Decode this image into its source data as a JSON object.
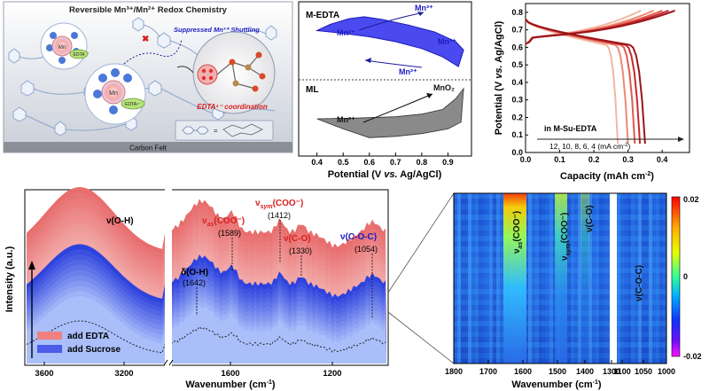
{
  "schematic": {
    "title": "Reversible Mn³⁺/Mn²⁺ Redox Chemistry",
    "suppressed_label": "Suppressed Mn³⁺ Shuttling",
    "coordination_label": "EDTA⁴⁻ coordination",
    "substrate_label": "Carbon Felt",
    "ion_label": "Mn",
    "ion_label_big": "Mn",
    "ligand_label": "EDTA",
    "ligand_label_big": "EDTA⁴⁻"
  },
  "chart_data": [
    {
      "id": "cv",
      "type": "line",
      "title": "",
      "xlabel_parts": [
        "Potential (V ",
        "vs.",
        " Ag/AgCl)"
      ],
      "xticks": [
        "0.4",
        "0.5",
        "0.6",
        "0.7",
        "0.8",
        "0.9"
      ],
      "xlim": [
        0.33,
        0.99
      ],
      "panels": [
        {
          "label": "M-EDTA",
          "annotations": [
            "Mn²⁺",
            "Mn³⁺",
            "Mn³⁺",
            "Mn²⁺"
          ],
          "color": "#3b3bf0",
          "curve": [
            [
              0.4,
              0.34
            ],
            [
              0.5,
              0.38
            ],
            [
              0.6,
              0.43
            ],
            [
              0.7,
              0.5
            ],
            [
              0.8,
              0.6
            ],
            [
              0.88,
              0.72
            ],
            [
              0.94,
              0.86
            ],
            [
              0.96,
              0.62
            ],
            [
              0.93,
              0.5
            ],
            [
              0.85,
              0.36
            ],
            [
              0.75,
              0.26
            ],
            [
              0.65,
              0.18
            ],
            [
              0.58,
              0.14
            ],
            [
              0.52,
              0.17
            ],
            [
              0.45,
              0.25
            ],
            [
              0.4,
              0.34
            ]
          ]
        },
        {
          "label": "ML",
          "annotations": [
            "Mn²⁺",
            "MnO₂"
          ],
          "color": "#808080",
          "curve": [
            [
              0.4,
              0.5
            ],
            [
              0.55,
              0.49
            ],
            [
              0.7,
              0.47
            ],
            [
              0.8,
              0.43
            ],
            [
              0.88,
              0.36
            ],
            [
              0.93,
              0.2
            ],
            [
              0.96,
              0.05
            ],
            [
              0.95,
              0.55
            ],
            [
              0.9,
              0.65
            ],
            [
              0.8,
              0.72
            ],
            [
              0.7,
              0.76
            ],
            [
              0.6,
              0.78
            ],
            [
              0.5,
              0.65
            ],
            [
              0.4,
              0.5
            ]
          ]
        }
      ]
    },
    {
      "id": "gcd",
      "type": "line",
      "title": "",
      "xlabel_parts": [
        "Capacity (mAh cm",
        "-2",
        ")"
      ],
      "ylabel_parts": [
        "Potential (V ",
        "vs.",
        " Ag/AgCl)"
      ],
      "xlim": [
        0.0,
        0.48
      ],
      "ylim": [
        0.0,
        0.85
      ],
      "xticks": [
        "0.0",
        "0.1",
        "0.2",
        "0.3",
        "0.4"
      ],
      "yticks": [
        "0.0",
        "0.1",
        "0.2",
        "0.3",
        "0.4",
        "0.5",
        "0.6",
        "0.7",
        "0.8"
      ],
      "legend_title": "in M-Su-EDTA",
      "legend_text_parts": [
        "12, 10, 8, 6, 4 (mA cm",
        "-2",
        ")"
      ],
      "series": [
        {
          "name": "12 mA cm-2",
          "color": "#f2b8a2",
          "capacity": 0.27
        },
        {
          "name": "10 mA cm-2",
          "color": "#ec8a74",
          "capacity": 0.3
        },
        {
          "name": "8 mA cm-2",
          "color": "#e05a4e",
          "capacity": 0.32
        },
        {
          "name": "6 mA cm-2",
          "color": "#c8272f",
          "capacity": 0.335
        },
        {
          "name": "4 mA cm-2",
          "color": "#9a1519",
          "capacity": 0.35
        }
      ]
    },
    {
      "id": "ftir",
      "type": "line",
      "xlabel_parts": [
        "Wavenumber (cm",
        "-1",
        ")"
      ],
      "ylabel": "Intensity (a.u.)",
      "xticks": [
        "3600",
        "3200",
        "1600",
        "1200"
      ],
      "legend": [
        "add EDTA",
        "add Sucrose"
      ],
      "legend_colors": [
        "#f08080",
        "#3d4ee6"
      ],
      "peaks": [
        {
          "label": "ν(O-H)",
          "position": ""
        },
        {
          "label_main": "ν",
          "label_sub": "as",
          "label_tail": "(COO⁻)",
          "position": "(1589)",
          "color": "#d62020"
        },
        {
          "label": "δ(O-H)",
          "position": "(1642)",
          "color": "#000000"
        },
        {
          "label_main": "ν",
          "label_sub": "sym",
          "label_tail": "(COO⁻)",
          "position": "(1412)",
          "color": "#d62020"
        },
        {
          "label": "ν(C-O)",
          "position": "(1330)",
          "color": "#d62020"
        },
        {
          "label": "ν(C-O-C)",
          "position": "(1054)",
          "color": "#1c1cc0"
        }
      ]
    },
    {
      "id": "heatmap",
      "type": "heatmap",
      "xlabel_parts": [
        "Wavenumber (cm",
        "-1",
        ")"
      ],
      "xticks": [
        "1800",
        "1700",
        "1600",
        "1500",
        "1400",
        "1300",
        "1100",
        "1050",
        "1000"
      ],
      "colorbar_ticks": [
        "0.02",
        "0",
        "-0.02"
      ],
      "colorbar_range": [
        -0.02,
        0.02
      ],
      "band_labels": [
        {
          "main": "ν",
          "sub": "as",
          "tail": "(COO⁻)"
        },
        {
          "main": "ν",
          "sub": "sym",
          "tail": "(COO⁻)"
        },
        {
          "main": "ν(C-O)",
          "sub": "",
          "tail": ""
        },
        {
          "main": "ν(C-O-C)",
          "sub": "",
          "tail": ""
        }
      ]
    }
  ]
}
